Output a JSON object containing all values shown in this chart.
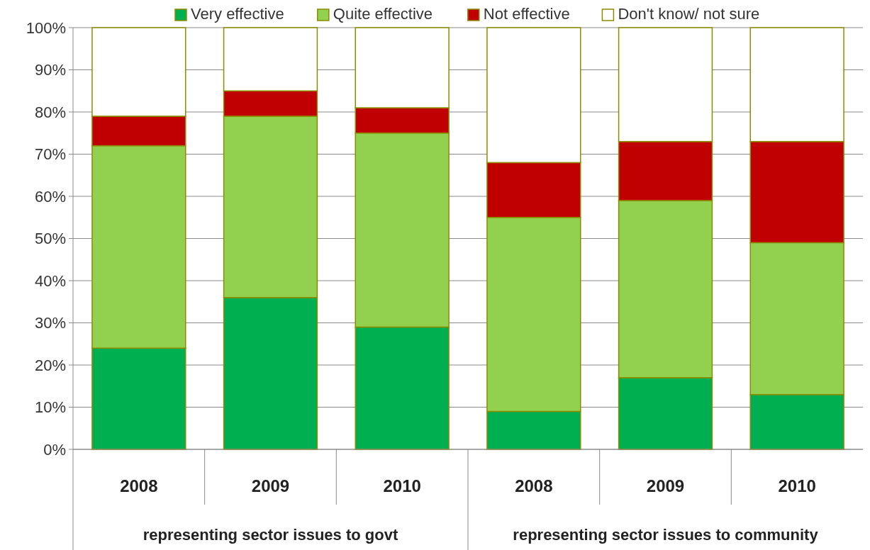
{
  "chart_data": {
    "type": "bar",
    "stacked": true,
    "categories": [
      "2008",
      "2009",
      "2010",
      "2008",
      "2009",
      "2010"
    ],
    "series": [
      {
        "name": "Very effective",
        "color": "#00b050",
        "values": [
          24,
          36,
          29,
          9,
          17,
          13
        ]
      },
      {
        "name": "Quite effective",
        "color": "#92d050",
        "values": [
          48,
          43,
          46,
          46,
          42,
          36
        ]
      },
      {
        "name": "Not effective",
        "color": "#c00000",
        "values": [
          7,
          6,
          6,
          13,
          14,
          24
        ]
      },
      {
        "name": "Don't know/ not sure",
        "color": "#ffffff",
        "values": [
          21,
          15,
          19,
          32,
          27,
          27
        ]
      }
    ],
    "ylim": [
      0,
      100
    ],
    "yticks": [
      {
        "value": 0,
        "label": "0%"
      },
      {
        "value": 10,
        "label": "10%"
      },
      {
        "value": 20,
        "label": "20%"
      },
      {
        "value": 30,
        "label": "30%"
      },
      {
        "value": 40,
        "label": "40%"
      },
      {
        "value": 50,
        "label": "50%"
      },
      {
        "value": 60,
        "label": "60%"
      },
      {
        "value": 70,
        "label": "70%"
      },
      {
        "value": 80,
        "label": "80%"
      },
      {
        "value": 90,
        "label": "90%"
      },
      {
        "value": 100,
        "label": "100%"
      }
    ],
    "grid": "y",
    "legend": "top",
    "annotations": [
      "representing sector issues to govt",
      "representing sector issues to community"
    ]
  }
}
